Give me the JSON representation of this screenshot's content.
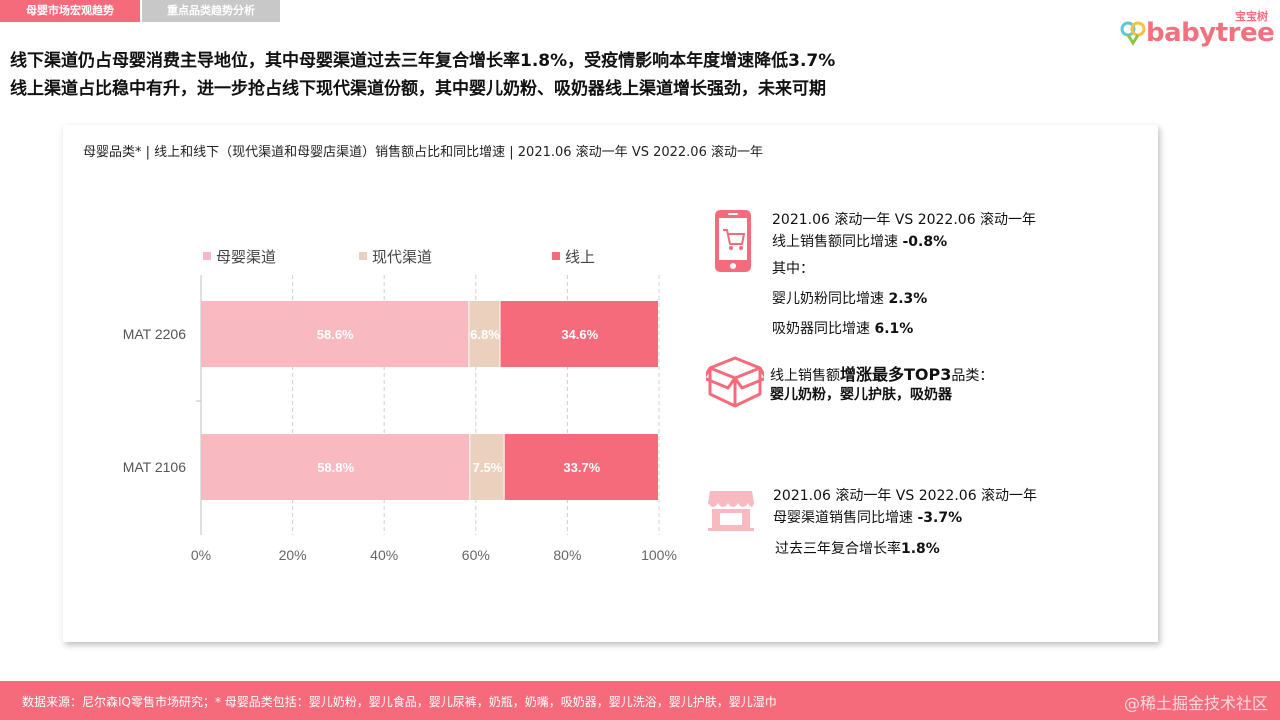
{
  "tabs": {
    "active": "母婴市场宏观趋势",
    "inactive": "重点品类趋势分析"
  },
  "logo": {
    "small": "宝宝树",
    "word": "babytree"
  },
  "headlines": {
    "line1": "线下渠道仍占母婴消费主导地位，其中母婴渠道过去三年复合增长率1.8%，受疫情影响本年度增速降低3.7%",
    "line2": "线上渠道占比稳中有升，进一步抢占线下现代渠道份额，其中婴儿奶粉、吸奶器线上渠道增长强劲，未来可期"
  },
  "chart_data": {
    "type": "bar",
    "orientation": "horizontal-stacked-percent",
    "title": "母婴品类* | 线上和线下（现代渠道和母婴店渠道）销售额占比和同比增速 | 2021.06 滚动一年 VS 2022.06 滚动一年",
    "categories": [
      "MAT 2206",
      "MAT 2106"
    ],
    "series": [
      {
        "name": "母婴渠道",
        "color": "#f8b9c0",
        "values": [
          58.6,
          58.8
        ],
        "labels": [
          "58.6%",
          "58.8%"
        ]
      },
      {
        "name": "现代渠道",
        "color": "#ebd0bd",
        "values": [
          6.8,
          7.5
        ],
        "labels": [
          "6.8%",
          "7.5%"
        ]
      },
      {
        "name": "线上",
        "color": "#f56b7b",
        "values": [
          34.6,
          33.7
        ],
        "labels": [
          "34.6%",
          "33.7%"
        ]
      }
    ],
    "xlim": [
      0,
      100
    ],
    "xticks": [
      "0%",
      "20%",
      "40%",
      "60%",
      "80%",
      "100%"
    ],
    "grid": "vertical-dashed",
    "legend": "top"
  },
  "stats": {
    "online": {
      "line1": "2021.06 滚动一年 VS 2022.06 滚动一年",
      "line2_label": "线上销售额同比增速 ",
      "line2_value": "-0.8%",
      "line3": "其中：",
      "line4_label": "婴儿奶粉同比增速 ",
      "line4_value": "2.3%",
      "line5_label": "吸奶器同比增速 ",
      "line5_value": "6.1%"
    },
    "top3": {
      "line1_prefix": "线上销售额",
      "line1_bold": "增涨最多TOP3",
      "line1_suffix": "品类：",
      "line2": "婴儿奶粉，婴儿护肤，吸奶器"
    },
    "store": {
      "line1": "2021.06 滚动一年 VS 2022.06 滚动一年",
      "line2_label": "母婴渠道销售同比增速 ",
      "line2_value": "-3.7%",
      "line3_label": "过去三年复合增长率",
      "line3_value": "1.8%"
    }
  },
  "footer": {
    "source": "数据来源：尼尔森IQ零售市场研究；* 母婴品类包括：婴儿奶粉，婴儿食品，婴儿尿裤，奶瓶，奶嘴，吸奶器，婴儿洗浴，婴儿护肤，婴儿湿巾",
    "watermark": "@稀土掘金技术社区"
  },
  "colors": {
    "accent": "#f56b7b",
    "tab_inactive": "#c8c8c8"
  },
  "icons": {
    "phone_cart": "phone-cart-icon",
    "box": "box-icon",
    "store": "store-icon"
  }
}
